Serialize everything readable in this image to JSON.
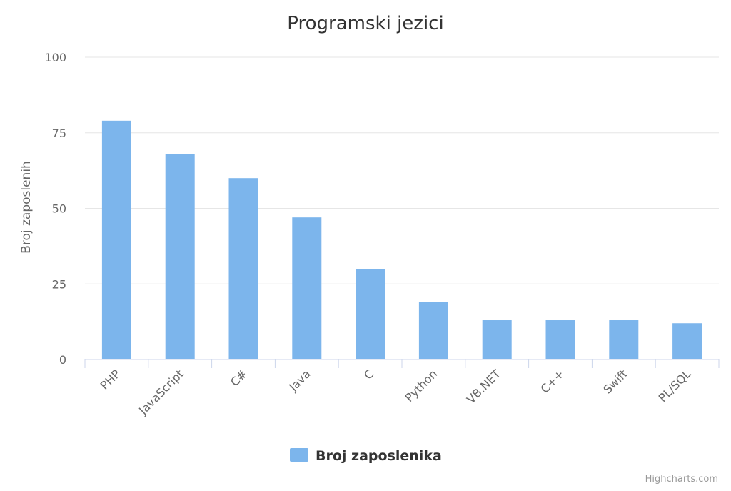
{
  "chart_data": {
    "type": "bar",
    "title": "Programski jezici",
    "xlabel": "",
    "ylabel": "Broj zaposlenih",
    "categories": [
      "PHP",
      "JavaScript",
      "C#",
      "Java",
      "C",
      "Python",
      "VB.NET",
      "C++",
      "Swift",
      "PL/SQL"
    ],
    "series": [
      {
        "name": "Broj zaposlenika",
        "values": [
          79,
          68,
          60,
          47,
          30,
          19,
          13,
          13,
          13,
          12
        ],
        "color": "#7cb5ec"
      }
    ],
    "ylim": [
      0,
      100
    ],
    "yticks": [
      0,
      25,
      50,
      75,
      100
    ],
    "grid": true,
    "legend_position": "bottom-center"
  },
  "credits": "Highcharts.com",
  "colors": {
    "grid": "#e6e6e6",
    "axis": "#ccd6eb",
    "title": "#333333",
    "label": "#666666"
  }
}
